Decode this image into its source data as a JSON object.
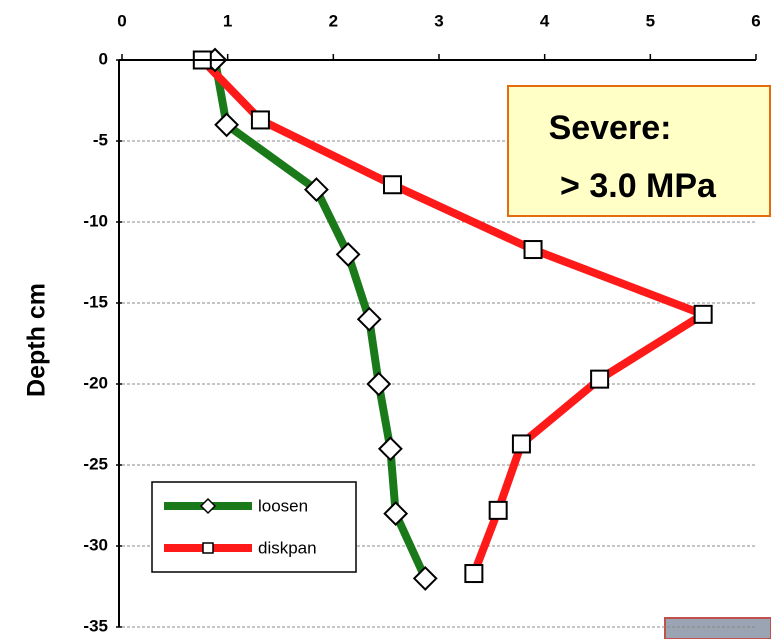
{
  "chart_data": {
    "type": "line",
    "y_label": "Depth cm",
    "annotation": [
      "Severe:",
      "> 3.0 MPa"
    ],
    "xlim": [
      0,
      6
    ],
    "xticks": [
      0,
      1,
      2,
      3,
      4,
      5,
      6
    ],
    "ylim": [
      -35,
      0
    ],
    "yticks": [
      0,
      -5,
      -10,
      -15,
      -20,
      -25,
      -30,
      -35
    ],
    "grid": true,
    "legend": "lower left",
    "series": [
      {
        "name": "loosen",
        "color": "#1a7a1a",
        "marker": "diamond",
        "x": [
          0.88,
          0.99,
          1.84,
          2.14,
          2.34,
          2.43,
          2.54,
          2.59,
          2.87
        ],
        "values": [
          0,
          -4,
          -8,
          -12,
          -16,
          -20,
          -24,
          -28,
          -32
        ]
      },
      {
        "name": "diskpan",
        "color": "#ff1a1a",
        "marker": "square",
        "x": [
          0.76,
          1.31,
          2.56,
          3.89,
          5.5,
          4.52,
          3.78,
          3.56,
          3.33
        ],
        "values": [
          0,
          -3.7,
          -7.7,
          -11.7,
          -15.7,
          -19.7,
          -23.7,
          -27.8,
          -31.7
        ]
      }
    ]
  }
}
